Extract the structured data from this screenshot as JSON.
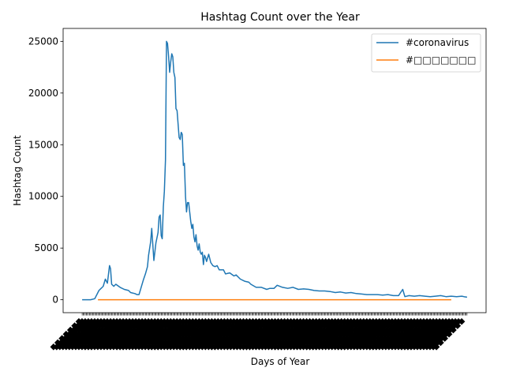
{
  "chart_data": {
    "type": "line",
    "title": "Hashtag Count over the Year",
    "xlabel": "Days of Year",
    "ylabel": "Hashtag Count",
    "ylim": [
      -1250,
      26250
    ],
    "xlim": [
      -18,
      383
    ],
    "yticks": [
      0,
      5000,
      10000,
      15000,
      20000,
      25000
    ],
    "grid": false,
    "legend_position": "top-right",
    "series": [
      {
        "name": "#coronavirus",
        "color": "#1f77b4",
        "points": [
          [
            0,
            0
          ],
          [
            8,
            0
          ],
          [
            12,
            100
          ],
          [
            16,
            900
          ],
          [
            20,
            1300
          ],
          [
            22,
            2000
          ],
          [
            24,
            1600
          ],
          [
            26,
            3300
          ],
          [
            27,
            3000
          ],
          [
            28,
            1500
          ],
          [
            30,
            1300
          ],
          [
            32,
            1500
          ],
          [
            36,
            1200
          ],
          [
            40,
            1000
          ],
          [
            44,
            900
          ],
          [
            46,
            700
          ],
          [
            50,
            600
          ],
          [
            52,
            500
          ],
          [
            54,
            500
          ],
          [
            56,
            1200
          ],
          [
            58,
            1900
          ],
          [
            60,
            2500
          ],
          [
            62,
            3200
          ],
          [
            63,
            4300
          ],
          [
            65,
            5600
          ],
          [
            66,
            6900
          ],
          [
            68,
            3800
          ],
          [
            70,
            5500
          ],
          [
            72,
            6500
          ],
          [
            73,
            8000
          ],
          [
            74,
            8200
          ],
          [
            75,
            6200
          ],
          [
            76,
            5900
          ],
          [
            77,
            9000
          ],
          [
            78,
            10500
          ],
          [
            79,
            13500
          ],
          [
            80,
            25000
          ],
          [
            81,
            24800
          ],
          [
            82,
            23500
          ],
          [
            83,
            22000
          ],
          [
            84,
            23000
          ],
          [
            85,
            23800
          ],
          [
            86,
            23500
          ],
          [
            87,
            22000
          ],
          [
            88,
            21500
          ],
          [
            89,
            18500
          ],
          [
            90,
            18300
          ],
          [
            91,
            17000
          ],
          [
            92,
            15700
          ],
          [
            93,
            15500
          ],
          [
            94,
            16200
          ],
          [
            95,
            16000
          ],
          [
            96,
            13000
          ],
          [
            97,
            13200
          ],
          [
            98,
            10000
          ],
          [
            99,
            8500
          ],
          [
            100,
            9400
          ],
          [
            101,
            9400
          ],
          [
            102,
            8500
          ],
          [
            103,
            7600
          ],
          [
            104,
            6900
          ],
          [
            105,
            7300
          ],
          [
            106,
            6100
          ],
          [
            107,
            5600
          ],
          [
            108,
            6300
          ],
          [
            109,
            5200
          ],
          [
            110,
            4800
          ],
          [
            111,
            5400
          ],
          [
            112,
            4600
          ],
          [
            113,
            4400
          ],
          [
            114,
            4600
          ],
          [
            115,
            3400
          ],
          [
            116,
            4300
          ],
          [
            117,
            4100
          ],
          [
            118,
            3700
          ],
          [
            120,
            4400
          ],
          [
            122,
            3600
          ],
          [
            124,
            3300
          ],
          [
            126,
            3200
          ],
          [
            128,
            3300
          ],
          [
            130,
            2900
          ],
          [
            134,
            2900
          ],
          [
            136,
            2500
          ],
          [
            140,
            2600
          ],
          [
            144,
            2300
          ],
          [
            146,
            2400
          ],
          [
            150,
            2000
          ],
          [
            154,
            1800
          ],
          [
            158,
            1700
          ],
          [
            160,
            1500
          ],
          [
            165,
            1200
          ],
          [
            170,
            1200
          ],
          [
            175,
            1000
          ],
          [
            178,
            1100
          ],
          [
            182,
            1100
          ],
          [
            185,
            1400
          ],
          [
            190,
            1200
          ],
          [
            195,
            1100
          ],
          [
            200,
            1200
          ],
          [
            205,
            1000
          ],
          [
            210,
            1050
          ],
          [
            215,
            1000
          ],
          [
            220,
            900
          ],
          [
            225,
            850
          ],
          [
            230,
            850
          ],
          [
            235,
            800
          ],
          [
            240,
            700
          ],
          [
            245,
            750
          ],
          [
            250,
            650
          ],
          [
            255,
            700
          ],
          [
            260,
            600
          ],
          [
            265,
            550
          ],
          [
            270,
            500
          ],
          [
            275,
            500
          ],
          [
            280,
            500
          ],
          [
            285,
            450
          ],
          [
            290,
            500
          ],
          [
            295,
            400
          ],
          [
            300,
            400
          ],
          [
            304,
            1000
          ],
          [
            306,
            300
          ],
          [
            310,
            400
          ],
          [
            315,
            350
          ],
          [
            320,
            400
          ],
          [
            325,
            350
          ],
          [
            330,
            300
          ],
          [
            335,
            350
          ],
          [
            340,
            400
          ],
          [
            345,
            300
          ],
          [
            350,
            350
          ],
          [
            355,
            300
          ],
          [
            360,
            350
          ],
          [
            362,
            300
          ],
          [
            365,
            250
          ]
        ]
      },
      {
        "name": "#□□□□□□□",
        "color": "#ff7f0e",
        "points": [
          [
            15,
            0
          ],
          [
            350,
            0
          ]
        ]
      }
    ]
  }
}
